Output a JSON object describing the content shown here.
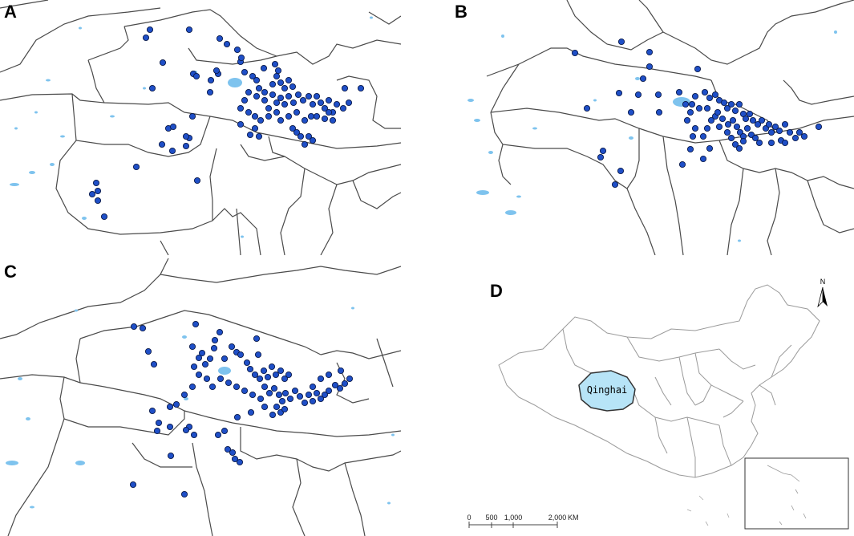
{
  "panels": [
    {
      "id": "A",
      "label": "A"
    },
    {
      "id": "B",
      "label": "B"
    },
    {
      "id": "C",
      "label": "C"
    },
    {
      "id": "D",
      "label": "D"
    }
  ],
  "inset_map": {
    "highlighted_region": "Qinghai",
    "north_label": "N",
    "scale_bar": {
      "ticks": [
        "0",
        "500",
        "1,000",
        "2,000"
      ],
      "unit": "KM"
    }
  },
  "colors": {
    "point_fill": "#1f4fc7",
    "point_stroke": "#0a1a4a",
    "lake": "#7ec3ee",
    "highlight": "#b7e4f7",
    "border": "#4a4a4a"
  }
}
